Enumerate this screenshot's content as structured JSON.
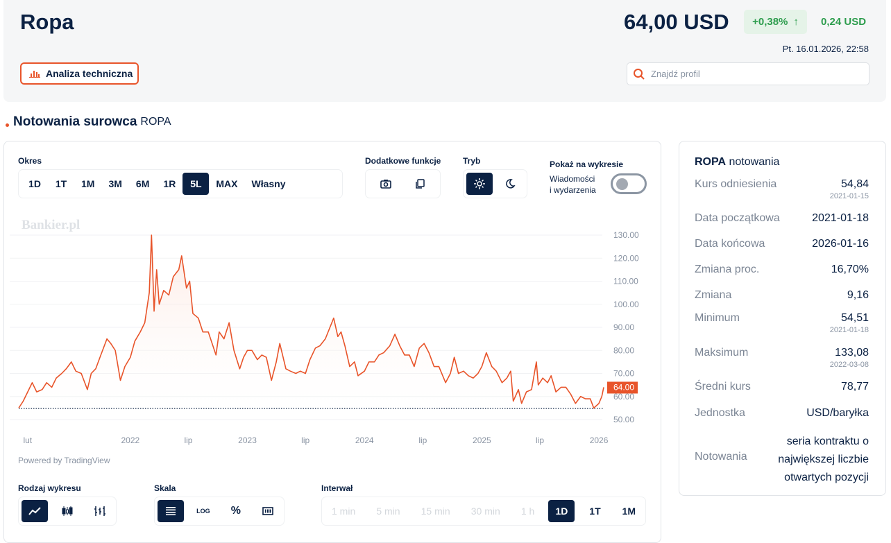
{
  "header": {
    "title": "Ropa",
    "price": "64,00 USD",
    "change_pct": "+0,38%",
    "change_abs": "0,24 USD",
    "datetime": "Pt. 16.01.2026, 22:58",
    "analysis_button": "Analiza techniczna",
    "search_placeholder": "Znajdź profil"
  },
  "section": {
    "title": "Notowania surowca",
    "ticker": "ROPA"
  },
  "controls": {
    "period_label": "Okres",
    "periods": [
      "1D",
      "1T",
      "1M",
      "3M",
      "6M",
      "1R",
      "5L",
      "MAX",
      "Własny"
    ],
    "period_selected": "5L",
    "extra_label": "Dodatkowe funkcje",
    "mode_label": "Tryb",
    "show_label": "Pokaż na wykresie",
    "news_label_1": "Wiadomości",
    "news_label_2": "i wydarzenia",
    "news_toggle": false,
    "chart_type_label": "Rodzaj wykresu",
    "scale_label": "Skala",
    "scale_log": "LOG",
    "scale_pct": "%",
    "interval_label": "Interwał",
    "intervals": [
      "1 min",
      "5 min",
      "15 min",
      "30 min",
      "1 h",
      "1D",
      "1T",
      "1M"
    ],
    "interval_selected": "1D"
  },
  "chart_data": {
    "type": "line",
    "watermark": "Bankier.pl",
    "powered_by": "Powered by TradingView",
    "ylim": [
      50,
      130
    ],
    "yticks": [
      "130.00",
      "120.00",
      "110.00",
      "100.00",
      "90.00",
      "80.00",
      "70.00",
      "60.00",
      "50.00"
    ],
    "xticks": [
      [
        "2021-02-01",
        "lut"
      ],
      [
        "2022-01-01",
        "2022"
      ],
      [
        "2022-07-01",
        "lip"
      ],
      [
        "2023-01-01",
        "2023"
      ],
      [
        "2023-07-01",
        "lip"
      ],
      [
        "2024-01-01",
        "2024"
      ],
      [
        "2024-07-01",
        "lip"
      ],
      [
        "2025-01-01",
        "2025"
      ],
      [
        "2025-07-01",
        "lip"
      ],
      [
        "2026-01-01",
        "2026"
      ]
    ],
    "last_value": "64.00",
    "reference_value": 54.84,
    "color": "#e8542a",
    "points": [
      [
        "2021-01-18",
        55
      ],
      [
        "2021-02-01",
        58
      ],
      [
        "2021-02-15",
        62
      ],
      [
        "2021-03-01",
        66
      ],
      [
        "2021-03-15",
        62
      ],
      [
        "2021-04-01",
        63
      ],
      [
        "2021-04-15",
        66
      ],
      [
        "2021-05-01",
        64
      ],
      [
        "2021-05-15",
        68
      ],
      [
        "2021-06-01",
        70
      ],
      [
        "2021-06-15",
        72
      ],
      [
        "2021-07-01",
        75
      ],
      [
        "2021-07-15",
        71
      ],
      [
        "2021-08-01",
        70
      ],
      [
        "2021-08-20",
        63
      ],
      [
        "2021-09-01",
        70
      ],
      [
        "2021-09-15",
        72
      ],
      [
        "2021-10-01",
        78
      ],
      [
        "2021-10-20",
        85
      ],
      [
        "2021-11-01",
        83
      ],
      [
        "2021-11-15",
        80
      ],
      [
        "2021-12-01",
        67
      ],
      [
        "2021-12-15",
        73
      ],
      [
        "2022-01-01",
        77
      ],
      [
        "2022-01-15",
        84
      ],
      [
        "2022-02-01",
        88
      ],
      [
        "2022-02-15",
        92
      ],
      [
        "2022-03-01",
        105
      ],
      [
        "2022-03-08",
        130
      ],
      [
        "2022-03-16",
        97
      ],
      [
        "2022-03-24",
        115
      ],
      [
        "2022-04-01",
        100
      ],
      [
        "2022-04-15",
        106
      ],
      [
        "2022-05-01",
        104
      ],
      [
        "2022-05-15",
        112
      ],
      [
        "2022-06-01",
        115
      ],
      [
        "2022-06-10",
        121
      ],
      [
        "2022-06-25",
        107
      ],
      [
        "2022-07-05",
        110
      ],
      [
        "2022-07-15",
        96
      ],
      [
        "2022-08-01",
        94
      ],
      [
        "2022-08-15",
        88
      ],
      [
        "2022-09-01",
        88
      ],
      [
        "2022-09-25",
        78
      ],
      [
        "2022-10-05",
        88
      ],
      [
        "2022-10-20",
        85
      ],
      [
        "2022-11-05",
        92
      ],
      [
        "2022-11-20",
        80
      ],
      [
        "2022-12-08",
        72
      ],
      [
        "2022-12-20",
        77
      ],
      [
        "2023-01-01",
        80
      ],
      [
        "2023-01-15",
        80
      ],
      [
        "2023-02-01",
        76
      ],
      [
        "2023-02-15",
        78
      ],
      [
        "2023-03-01",
        77
      ],
      [
        "2023-03-17",
        67
      ],
      [
        "2023-04-01",
        75
      ],
      [
        "2023-04-12",
        83
      ],
      [
        "2023-05-01",
        72
      ],
      [
        "2023-05-15",
        71
      ],
      [
        "2023-06-01",
        70
      ],
      [
        "2023-06-15",
        71
      ],
      [
        "2023-07-01",
        70
      ],
      [
        "2023-07-15",
        76
      ],
      [
        "2023-08-01",
        81
      ],
      [
        "2023-08-15",
        82
      ],
      [
        "2023-09-01",
        85
      ],
      [
        "2023-09-27",
        94
      ],
      [
        "2023-10-10",
        86
      ],
      [
        "2023-10-20",
        88
      ],
      [
        "2023-11-01",
        82
      ],
      [
        "2023-11-16",
        73
      ],
      [
        "2023-12-01",
        75
      ],
      [
        "2023-12-12",
        69
      ],
      [
        "2024-01-01",
        71
      ],
      [
        "2024-01-15",
        75
      ],
      [
        "2024-02-01",
        75
      ],
      [
        "2024-02-15",
        78
      ],
      [
        "2024-03-01",
        79
      ],
      [
        "2024-03-20",
        82
      ],
      [
        "2024-04-05",
        87
      ],
      [
        "2024-04-20",
        82
      ],
      [
        "2024-05-05",
        78
      ],
      [
        "2024-05-20",
        78
      ],
      [
        "2024-06-04",
        73
      ],
      [
        "2024-06-20",
        81
      ],
      [
        "2024-07-05",
        83
      ],
      [
        "2024-07-20",
        79
      ],
      [
        "2024-08-05",
        73
      ],
      [
        "2024-08-20",
        73
      ],
      [
        "2024-09-10",
        66
      ],
      [
        "2024-09-25",
        70
      ],
      [
        "2024-10-07",
        77
      ],
      [
        "2024-10-20",
        70
      ],
      [
        "2024-11-05",
        71
      ],
      [
        "2024-11-20",
        69
      ],
      [
        "2024-12-05",
        68
      ],
      [
        "2024-12-20",
        70
      ],
      [
        "2025-01-01",
        73
      ],
      [
        "2025-01-15",
        79
      ],
      [
        "2025-02-01",
        73
      ],
      [
        "2025-02-15",
        71
      ],
      [
        "2025-03-05",
        66
      ],
      [
        "2025-03-20",
        68
      ],
      [
        "2025-04-01",
        71
      ],
      [
        "2025-04-09",
        58
      ],
      [
        "2025-04-25",
        63
      ],
      [
        "2025-05-05",
        57
      ],
      [
        "2025-05-20",
        62
      ],
      [
        "2025-06-05",
        63
      ],
      [
        "2025-06-20",
        75
      ],
      [
        "2025-06-26",
        65
      ],
      [
        "2025-07-10",
        68
      ],
      [
        "2025-07-25",
        66
      ],
      [
        "2025-08-05",
        69
      ],
      [
        "2025-08-20",
        62
      ],
      [
        "2025-09-05",
        64
      ],
      [
        "2025-09-20",
        64
      ],
      [
        "2025-10-05",
        61
      ],
      [
        "2025-10-20",
        57
      ],
      [
        "2025-11-05",
        60
      ],
      [
        "2025-11-20",
        59
      ],
      [
        "2025-12-05",
        59
      ],
      [
        "2025-12-16",
        55
      ],
      [
        "2026-01-01",
        57
      ],
      [
        "2026-01-10",
        60
      ],
      [
        "2026-01-16",
        64
      ]
    ]
  },
  "panel": {
    "ticker": "ROPA",
    "subtitle": "notowania",
    "rows": [
      {
        "k": "Kurs odniesienia",
        "v": "54,84",
        "s": "2021-01-15"
      },
      {
        "k": "Data początkowa",
        "v": "2021-01-18"
      },
      {
        "k": "Data końcowa",
        "v": "2026-01-16"
      },
      {
        "k": "Zmiana proc.",
        "v": "16,70%"
      },
      {
        "k": "Zmiana",
        "v": "9,16"
      },
      {
        "k": "Minimum",
        "v": "54,51",
        "s": "2021-01-18"
      },
      {
        "k": "Maksimum",
        "v": "133,08",
        "s": "2022-03-08"
      },
      {
        "k": "Średni kurs",
        "v": "78,77"
      },
      {
        "k": "Jednostka",
        "v": "USD/baryłka"
      }
    ],
    "notowania_k": "Notowania",
    "notowania_v": [
      "seria kontraktu o",
      "największej liczbie",
      "otwartych pozycji"
    ]
  }
}
